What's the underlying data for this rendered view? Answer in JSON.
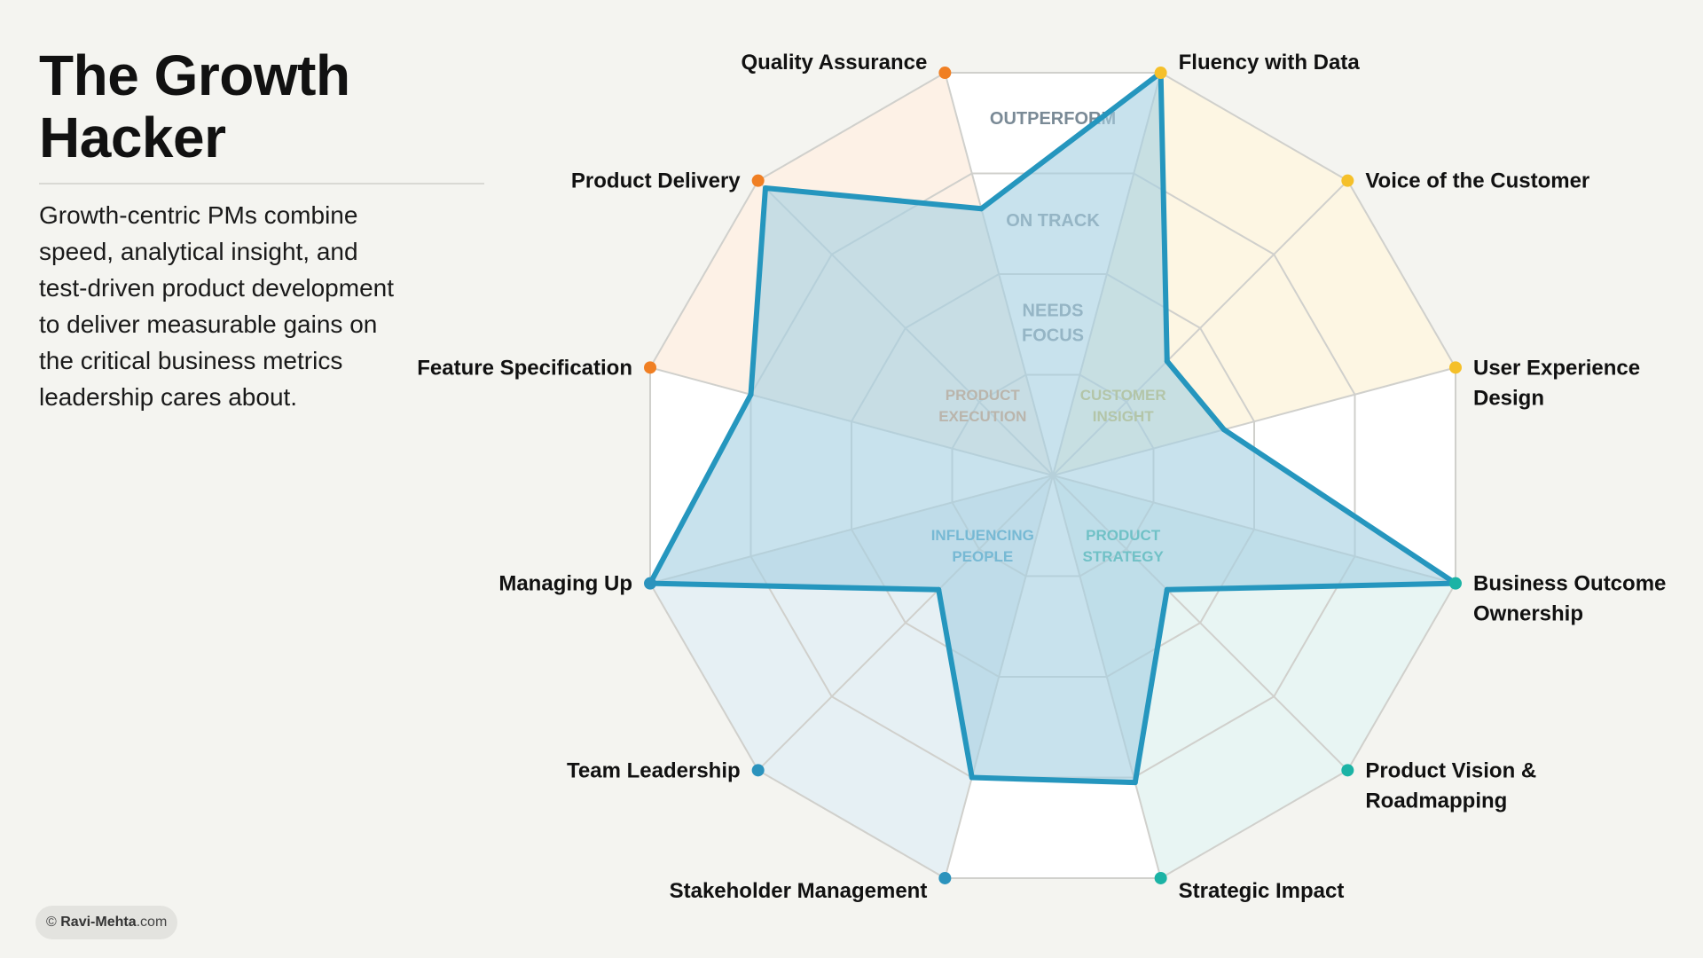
{
  "title": "The Growth Hacker",
  "description": "Growth-centric PMs combine speed, analytical insight, and test-driven product development to deliver measurable gains on the critical business metrics leadership cares about.",
  "credit": {
    "symbol": "©",
    "brand": "Ravi-Mehta",
    "suffix": ".com"
  },
  "chart_data": {
    "type": "radar",
    "axes": [
      {
        "label": "Fluency with Data",
        "lines": [
          "Fluency with Data"
        ],
        "group": "Customer Insight",
        "value": 4.0
      },
      {
        "label": "Voice of the Customer",
        "lines": [
          "Voice of the Customer"
        ],
        "group": "Customer Insight",
        "value": 1.55
      },
      {
        "label": "User Experience Design",
        "lines": [
          "User Experience",
          "Design"
        ],
        "group": "Customer Insight",
        "value": 1.7
      },
      {
        "label": "Business Outcome Ownership",
        "lines": [
          "Business Outcome",
          "Ownership"
        ],
        "group": "Product Strategy",
        "value": 4.0
      },
      {
        "label": "Product Vision & Roadmapping",
        "lines": [
          "Product Vision &",
          "Roadmapping"
        ],
        "group": "Product Strategy",
        "value": 1.55
      },
      {
        "label": "Strategic Impact",
        "lines": [
          "Strategic Impact"
        ],
        "group": "Product Strategy",
        "value": 3.05
      },
      {
        "label": "Stakeholder Management",
        "lines": [
          "Stakeholder Management"
        ],
        "group": "Influencing People",
        "value": 3.0
      },
      {
        "label": "Team Leadership",
        "lines": [
          "Team Leadership"
        ],
        "group": "Influencing People",
        "value": 1.55
      },
      {
        "label": "Managing Up",
        "lines": [
          "Managing Up"
        ],
        "group": "Influencing People",
        "value": 4.0
      },
      {
        "label": "Feature Specification",
        "lines": [
          "Feature Specification"
        ],
        "group": "Product Execution",
        "value": 3.0
      },
      {
        "label": "Product Delivery",
        "lines": [
          "Product Delivery"
        ],
        "group": "Product Execution",
        "value": 3.9
      },
      {
        "label": "Quality Assurance",
        "lines": [
          "Quality Assurance"
        ],
        "group": "Product Execution",
        "value": 2.65
      }
    ],
    "rings": [
      {
        "value": 2,
        "label": "NEEDS FOCUS",
        "lines": [
          "NEEDS",
          "FOCUS"
        ]
      },
      {
        "value": 3,
        "label": "ON TRACK",
        "lines": [
          "ON TRACK"
        ]
      },
      {
        "value": 4,
        "label": "OUTPERFORM",
        "lines": [
          "OUTPERFORM"
        ]
      }
    ],
    "range": [
      0,
      4
    ],
    "groups": [
      {
        "name": "Customer Insight",
        "lines": [
          "CUSTOMER",
          "INSIGHT"
        ],
        "color": "#f5c02a",
        "fill": "#fdf6e3",
        "text_color": "#c9b34a"
      },
      {
        "name": "Product Strategy",
        "lines": [
          "PRODUCT",
          "STRATEGY"
        ],
        "color": "#1bb3a5",
        "fill": "#e8f5f3",
        "text_color": "#1aa89a"
      },
      {
        "name": "Influencing People",
        "lines": [
          "INFLUENCING",
          "PEOPLE"
        ],
        "color": "#2b93bd",
        "fill": "#e6f0f4",
        "text_color": "#2b93bd"
      },
      {
        "name": "Product Execution",
        "lines": [
          "PRODUCT",
          "EXECUTION"
        ],
        "color": "#f07f23",
        "fill": "#fdf1e6",
        "text_color": "#d98a55"
      }
    ],
    "series": [
      {
        "values": [
          4.0,
          1.55,
          1.7,
          4.0,
          1.55,
          3.05,
          3.0,
          1.55,
          4.0,
          3.0,
          3.9,
          2.65
        ]
      }
    ],
    "colors": {
      "line": "#2596be",
      "fill": "#a7d0e2",
      "grid": "#d0d0cc"
    }
  }
}
